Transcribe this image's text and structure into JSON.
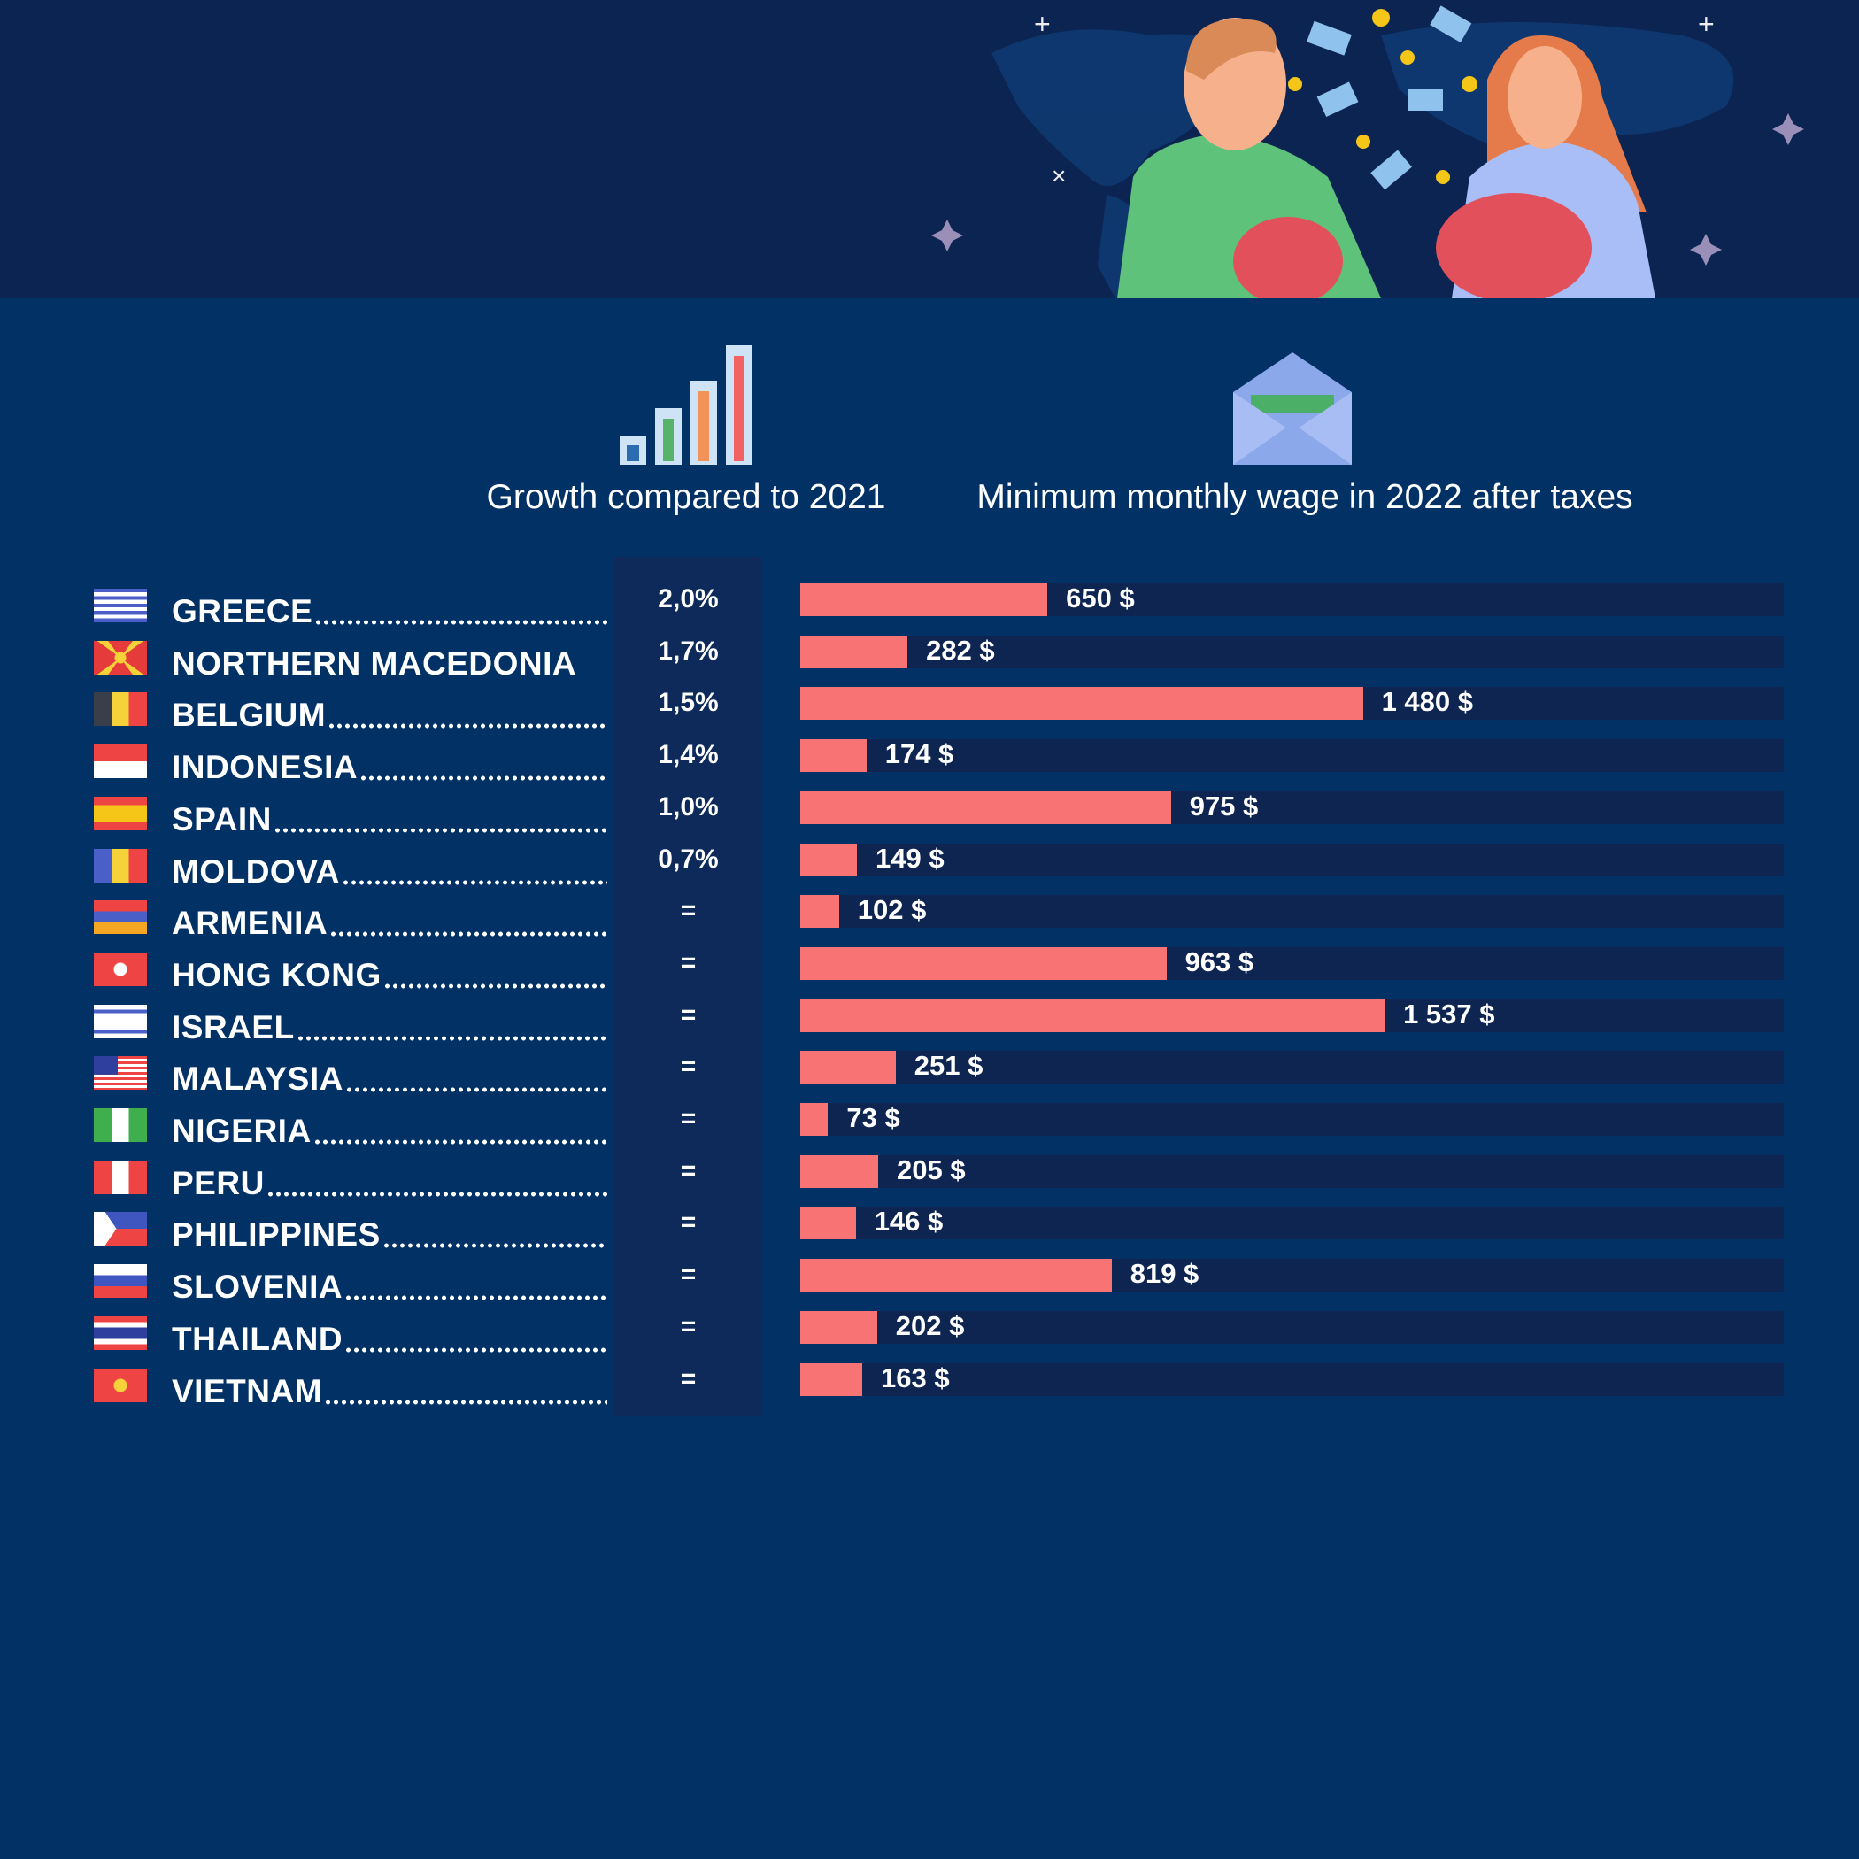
{
  "headers": {
    "growth": "Growth compared to 2021",
    "wage": "Minimum monthly wage in 2022 after taxes"
  },
  "colors": {
    "bar": "#f87474",
    "track": "#0e2552",
    "background": "#023166",
    "hero": "#0b2452"
  },
  "chart_data": {
    "type": "bar",
    "orientation": "horizontal",
    "title": "Minimum monthly wage in 2022 after taxes",
    "growth_title": "Growth compared to 2021",
    "unit": "$",
    "xlim": [
      0,
      2587
    ],
    "categories": [
      "GREECE",
      "NORTHERN MACEDONIA",
      "BELGIUM",
      "INDONESIA",
      "SPAIN",
      "MOLDOVA",
      "ARMENIA",
      "HONG KONG",
      "ISRAEL",
      "MALAYSIA",
      "NIGERIA",
      "PERU",
      "PHILIPPINES",
      "SLOVENIA",
      "THAILAND",
      "VIETNAM"
    ],
    "rows": [
      {
        "country": "GREECE",
        "flag": "greece",
        "growth": "2,0%",
        "value": 650,
        "label": "650 $",
        "leader": true
      },
      {
        "country": "NORTHERN MACEDONIA",
        "flag": "macedonia",
        "growth": "1,7%",
        "value": 282,
        "label": "282 $",
        "leader": false
      },
      {
        "country": "BELGIUM",
        "flag": "belgium",
        "growth": "1,5%",
        "value": 1480,
        "label": "1 480 $",
        "leader": true
      },
      {
        "country": "INDONESIA",
        "flag": "indonesia",
        "growth": "1,4%",
        "value": 174,
        "label": "174 $",
        "leader": true
      },
      {
        "country": "SPAIN",
        "flag": "spain",
        "growth": "1,0%",
        "value": 975,
        "label": "975 $",
        "leader": true
      },
      {
        "country": "MOLDOVA",
        "flag": "moldova",
        "growth": "0,7%",
        "value": 149,
        "label": "149 $",
        "leader": true
      },
      {
        "country": "ARMENIA",
        "flag": "armenia",
        "growth": "=",
        "value": 102,
        "label": "102 $",
        "leader": true
      },
      {
        "country": "HONG KONG",
        "flag": "hongkong",
        "growth": "=",
        "value": 963,
        "label": "963 $",
        "leader": true
      },
      {
        "country": "ISRAEL",
        "flag": "israel",
        "growth": "=",
        "value": 1537,
        "label": "1 537 $",
        "leader": true
      },
      {
        "country": "MALAYSIA",
        "flag": "malaysia",
        "growth": "=",
        "value": 251,
        "label": "251 $",
        "leader": true
      },
      {
        "country": "NIGERIA",
        "flag": "nigeria",
        "growth": "=",
        "value": 73,
        "label": "73 $",
        "leader": true
      },
      {
        "country": "PERU",
        "flag": "peru",
        "growth": "=",
        "value": 205,
        "label": "205 $",
        "leader": true
      },
      {
        "country": "PHILIPPINES",
        "flag": "philippines",
        "growth": "=",
        "value": 146,
        "label": "146 $",
        "leader": true
      },
      {
        "country": "SLOVENIA",
        "flag": "slovenia",
        "growth": "=",
        "value": 819,
        "label": "819 $",
        "leader": true
      },
      {
        "country": "THAILAND",
        "flag": "thailand",
        "growth": "=",
        "value": 202,
        "label": "202 $",
        "leader": true
      },
      {
        "country": "VIETNAM",
        "flag": "vietnam",
        "growth": "=",
        "value": 163,
        "label": "163 $",
        "leader": true
      }
    ]
  }
}
